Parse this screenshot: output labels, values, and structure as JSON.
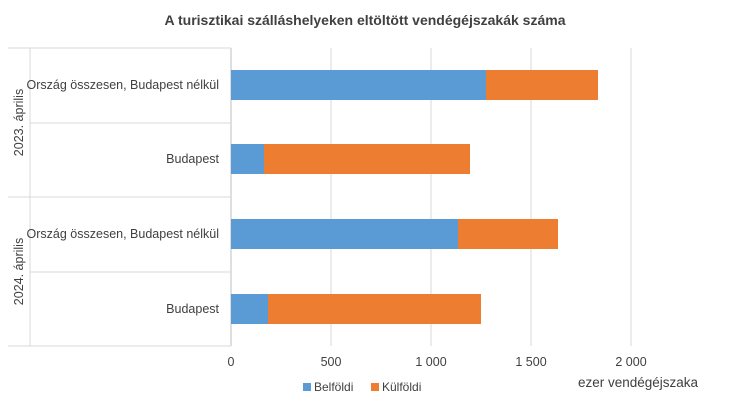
{
  "chart_data": {
    "type": "bar",
    "orientation": "horizontal",
    "stacked": true,
    "title": "A turisztikai szálláshelyeken eltöltött vendégéjszakák száma",
    "xlabel": "ezer vendégéjszaka",
    "xlim": [
      0,
      2000
    ],
    "xticks": [
      0,
      500,
      1000,
      1500,
      2000
    ],
    "xtick_labels": [
      "0",
      "500",
      "1 000",
      "1 500",
      "2 000"
    ],
    "grid": "vertical",
    "legend_position": "bottom",
    "groups": [
      {
        "label": "2023. április",
        "categories": [
          "Ország összesen, Budapest nélkül",
          "Budapest"
        ]
      },
      {
        "label": "2024. április",
        "categories": [
          "Ország összesen, Budapest nélkül",
          "Budapest"
        ]
      }
    ],
    "series": [
      {
        "name": "Belföldi",
        "color": "#5B9BD5",
        "values": [
          1275,
          165,
          1135,
          185
        ]
      },
      {
        "name": "Külföldi",
        "color": "#ED7D31",
        "values": [
          560,
          1030,
          500,
          1065
        ]
      }
    ]
  }
}
